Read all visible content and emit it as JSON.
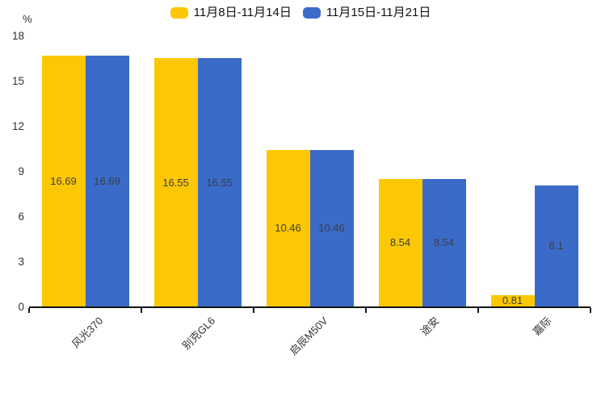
{
  "chart_data": {
    "type": "bar",
    "title": "",
    "y_unit_label": "%",
    "categories": [
      "风光370",
      "别克GL6",
      "启辰M50V",
      "途安",
      "嘉际"
    ],
    "series": [
      {
        "name": "11月8日-11月14日",
        "color": "#FCC805",
        "values": [
          16.69,
          16.55,
          10.46,
          8.54,
          0.81
        ]
      },
      {
        "name": "11月15日-11月21日",
        "color": "#3B6BC9",
        "values": [
          16.69,
          16.55,
          10.46,
          8.54,
          8.1
        ]
      }
    ],
    "value_labels": [
      "16.69",
      "16.55",
      "10.46",
      "8.54",
      "0.81",
      "8.1"
    ],
    "ylim": [
      0,
      18
    ],
    "yticks": [
      0,
      3,
      6,
      9,
      12,
      15,
      18
    ],
    "legend_position": "top-center",
    "grid": false,
    "value_labels_inside_bars": true,
    "x_label_rotation_deg": -45,
    "colors": {
      "background": "#ffffff",
      "axis_line": "#141414",
      "tick_text": "#333333",
      "value_label_text": "#3d3d3d",
      "legend_text": "#111111"
    }
  }
}
